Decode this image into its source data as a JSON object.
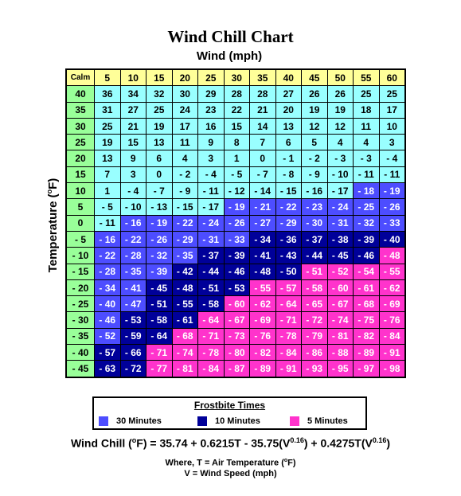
{
  "chart_data": {
    "type": "table",
    "title": "Wind Chill Chart",
    "xlabel": "Wind (mph)",
    "ylabel_prefix": "Temperature (",
    "ylabel_degree": "o",
    "ylabel_suffix": "F)",
    "corner_label": "Calm",
    "wind_speeds": [
      "5",
      "10",
      "15",
      "20",
      "25",
      "30",
      "35",
      "40",
      "45",
      "50",
      "55",
      "60"
    ],
    "temperatures": [
      "40",
      "35",
      "30",
      "25",
      "20",
      "15",
      "10",
      "5",
      "0",
      "- 5",
      "- 10",
      "- 15",
      "- 20",
      "- 25",
      "- 30",
      "- 35",
      "- 40",
      "- 45"
    ],
    "rows": [
      [
        "36",
        "34",
        "32",
        "30",
        "29",
        "28",
        "28",
        "27",
        "26",
        "26",
        "25",
        "25"
      ],
      [
        "31",
        "27",
        "25",
        "24",
        "23",
        "22",
        "21",
        "20",
        "19",
        "19",
        "18",
        "17"
      ],
      [
        "25",
        "21",
        "19",
        "17",
        "16",
        "15",
        "14",
        "13",
        "12",
        "12",
        "11",
        "10"
      ],
      [
        "19",
        "15",
        "13",
        "11",
        "9",
        "8",
        "7",
        "6",
        "5",
        "4",
        "4",
        "3"
      ],
      [
        "13",
        "9",
        "6",
        "4",
        "3",
        "1",
        "0",
        "- 1",
        "- 2",
        "- 3",
        "- 3",
        "- 4"
      ],
      [
        "7",
        "3",
        "0",
        "- 2",
        "- 4",
        "- 5",
        "- 7",
        "- 8",
        "- 9",
        "- 10",
        "- 11",
        "- 11"
      ],
      [
        "1",
        "- 4",
        "- 7",
        "- 9",
        "- 11",
        "- 12",
        "- 14",
        "- 15",
        "- 16",
        "- 17",
        "- 18",
        "- 19"
      ],
      [
        "- 5",
        "- 10",
        "- 13",
        "- 15",
        "- 17",
        "- 19",
        "- 21",
        "- 22",
        "- 23",
        "- 24",
        "- 25",
        "- 26"
      ],
      [
        "- 11",
        "- 16",
        "- 19",
        "- 22",
        "- 24",
        "- 26",
        "- 27",
        "- 29",
        "- 30",
        "- 31",
        "- 32",
        "- 33"
      ],
      [
        "- 16",
        "- 22",
        "- 26",
        "- 29",
        "- 31",
        "- 33",
        "- 34",
        "- 36",
        "- 37",
        "- 38",
        "- 39",
        "- 40"
      ],
      [
        "- 22",
        "- 28",
        "- 32",
        "- 35",
        "- 37",
        "- 39",
        "- 41",
        "- 43",
        "- 44",
        "- 45",
        "- 46",
        "- 48"
      ],
      [
        "- 28",
        "- 35",
        "- 39",
        "- 42",
        "- 44",
        "- 46",
        "- 48",
        "- 50",
        "- 51",
        "- 52",
        "- 54",
        "- 55"
      ],
      [
        "- 34",
        "- 41",
        "- 45",
        "- 48",
        "- 51",
        "- 53",
        "- 55",
        "- 57",
        "- 58",
        "- 60",
        "- 61",
        "- 62"
      ],
      [
        "- 40",
        "- 47",
        "- 51",
        "- 55",
        "- 58",
        "- 60",
        "- 62",
        "- 64",
        "- 65",
        "- 67",
        "- 68",
        "- 69"
      ],
      [
        "- 46",
        "- 53",
        "- 58",
        "- 61",
        "- 64",
        "- 67",
        "- 69",
        "- 71",
        "- 72",
        "- 74",
        "- 75",
        "- 76"
      ],
      [
        "- 52",
        "- 59",
        "- 64",
        "- 68",
        "- 71",
        "- 73",
        "- 76",
        "- 78",
        "- 79",
        "- 81",
        "- 82",
        "- 84"
      ],
      [
        "- 57",
        "- 66",
        "- 71",
        "- 74",
        "- 78",
        "- 80",
        "- 82",
        "- 84",
        "- 86",
        "- 88",
        "- 89",
        "- 91"
      ],
      [
        "- 63",
        "- 72",
        "- 77",
        "- 81",
        "- 84",
        "- 87",
        "- 89",
        "- 91",
        "- 93",
        "- 95",
        "- 97",
        "- 98"
      ]
    ],
    "zones": [
      [
        0,
        0,
        0,
        0,
        0,
        0,
        0,
        0,
        0,
        0,
        0,
        0
      ],
      [
        0,
        0,
        0,
        0,
        0,
        0,
        0,
        0,
        0,
        0,
        0,
        0
      ],
      [
        0,
        0,
        0,
        0,
        0,
        0,
        0,
        0,
        0,
        0,
        0,
        0
      ],
      [
        0,
        0,
        0,
        0,
        0,
        0,
        0,
        0,
        0,
        0,
        0,
        0
      ],
      [
        0,
        0,
        0,
        0,
        0,
        0,
        0,
        0,
        0,
        0,
        0,
        0
      ],
      [
        0,
        0,
        0,
        0,
        0,
        0,
        0,
        0,
        0,
        0,
        0,
        0
      ],
      [
        0,
        0,
        0,
        0,
        0,
        0,
        0,
        0,
        0,
        0,
        30,
        30
      ],
      [
        0,
        0,
        0,
        0,
        0,
        30,
        30,
        30,
        30,
        30,
        30,
        30
      ],
      [
        0,
        30,
        30,
        30,
        30,
        30,
        30,
        30,
        30,
        30,
        30,
        30
      ],
      [
        30,
        30,
        30,
        30,
        30,
        30,
        10,
        10,
        10,
        10,
        10,
        10
      ],
      [
        30,
        30,
        30,
        30,
        10,
        10,
        10,
        10,
        10,
        10,
        10,
        5
      ],
      [
        30,
        30,
        30,
        10,
        10,
        10,
        10,
        10,
        5,
        5,
        5,
        5
      ],
      [
        30,
        30,
        10,
        10,
        10,
        10,
        5,
        5,
        5,
        5,
        5,
        5
      ],
      [
        30,
        30,
        10,
        10,
        10,
        5,
        5,
        5,
        5,
        5,
        5,
        5
      ],
      [
        30,
        10,
        10,
        10,
        5,
        5,
        5,
        5,
        5,
        5,
        5,
        5
      ],
      [
        30,
        10,
        10,
        5,
        5,
        5,
        5,
        5,
        5,
        5,
        5,
        5
      ],
      [
        10,
        10,
        5,
        5,
        5,
        5,
        5,
        5,
        5,
        5,
        5,
        5
      ],
      [
        10,
        10,
        5,
        5,
        5,
        5,
        5,
        5,
        5,
        5,
        5,
        5
      ]
    ],
    "legend": {
      "title": "Frostbite Times",
      "placement": "bottom",
      "items": [
        {
          "label": "30 Minutes",
          "color": "#4d4dff"
        },
        {
          "label": "10 Minutes",
          "color": "#000099"
        },
        {
          "label": "5 Minutes",
          "color": "#ff33cc"
        }
      ]
    },
    "colors": {
      "header": "#ffff99",
      "row_label": "#99ff99",
      "normal": "#99ffff"
    },
    "formula": {
      "lead": "Wind Chill (",
      "degree": "o",
      "mid": "F) = 35.74 + 0.6215T - 35.75(V",
      "exp1": "0.16",
      "mid2": ") + 0.4275T(V",
      "exp2": "0.16",
      "tail": ")"
    },
    "notes": {
      "line1_prefix": "Where, T = Air Temperature (",
      "line1_degree": "o",
      "line1_suffix": "F)",
      "line2": "V = Wind Speed (mph)"
    }
  }
}
